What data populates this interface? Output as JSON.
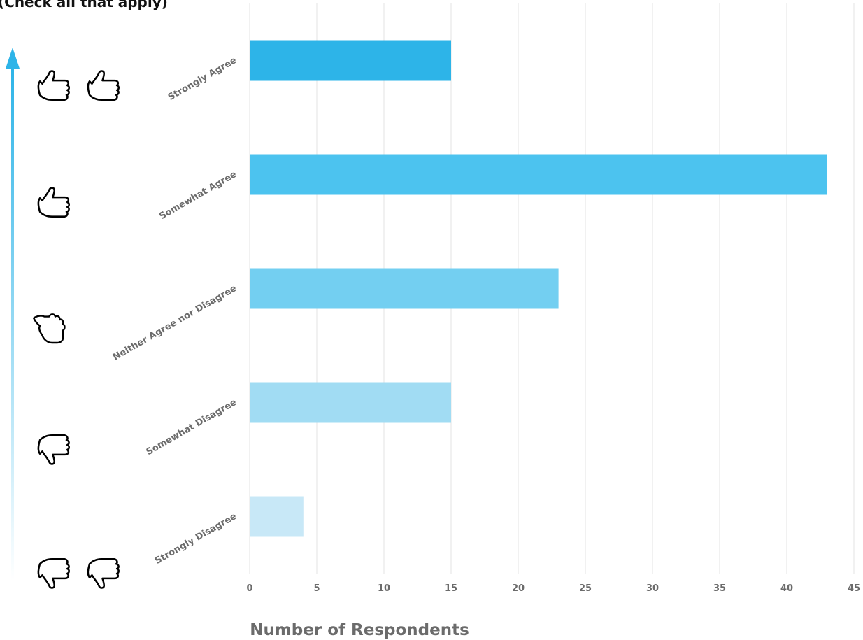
{
  "subtitle": "(Check all that apply)",
  "icons": {
    "scale_arrow": "gradient-up-arrow-icon",
    "rows": [
      [
        "thumbs-up-icon",
        "thumbs-up-icon"
      ],
      [
        "thumbs-up-icon"
      ],
      [
        "thumbs-sideways-icon"
      ],
      [
        "thumbs-down-icon"
      ],
      [
        "thumbs-down-icon",
        "thumbs-down-icon"
      ]
    ]
  },
  "chart_data": {
    "type": "bar",
    "orientation": "horizontal",
    "categories": [
      "Strongly Agree",
      "Somewhat Agree",
      "Neither Agree nor Disagree",
      "Somewhat Disagree",
      "Strongly Disagree"
    ],
    "values": [
      15,
      43,
      23,
      15,
      4
    ],
    "bar_colors": [
      "#2db4e8",
      "#4cc3ef",
      "#73cff1",
      "#a1dcf3",
      "#c8e8f7"
    ],
    "xlabel": "Number of Respondents",
    "ylabel": "",
    "xlim": [
      0,
      45
    ],
    "xticks": [
      0,
      5,
      10,
      15,
      20,
      25,
      30,
      35,
      40,
      45
    ],
    "grid": true
  }
}
